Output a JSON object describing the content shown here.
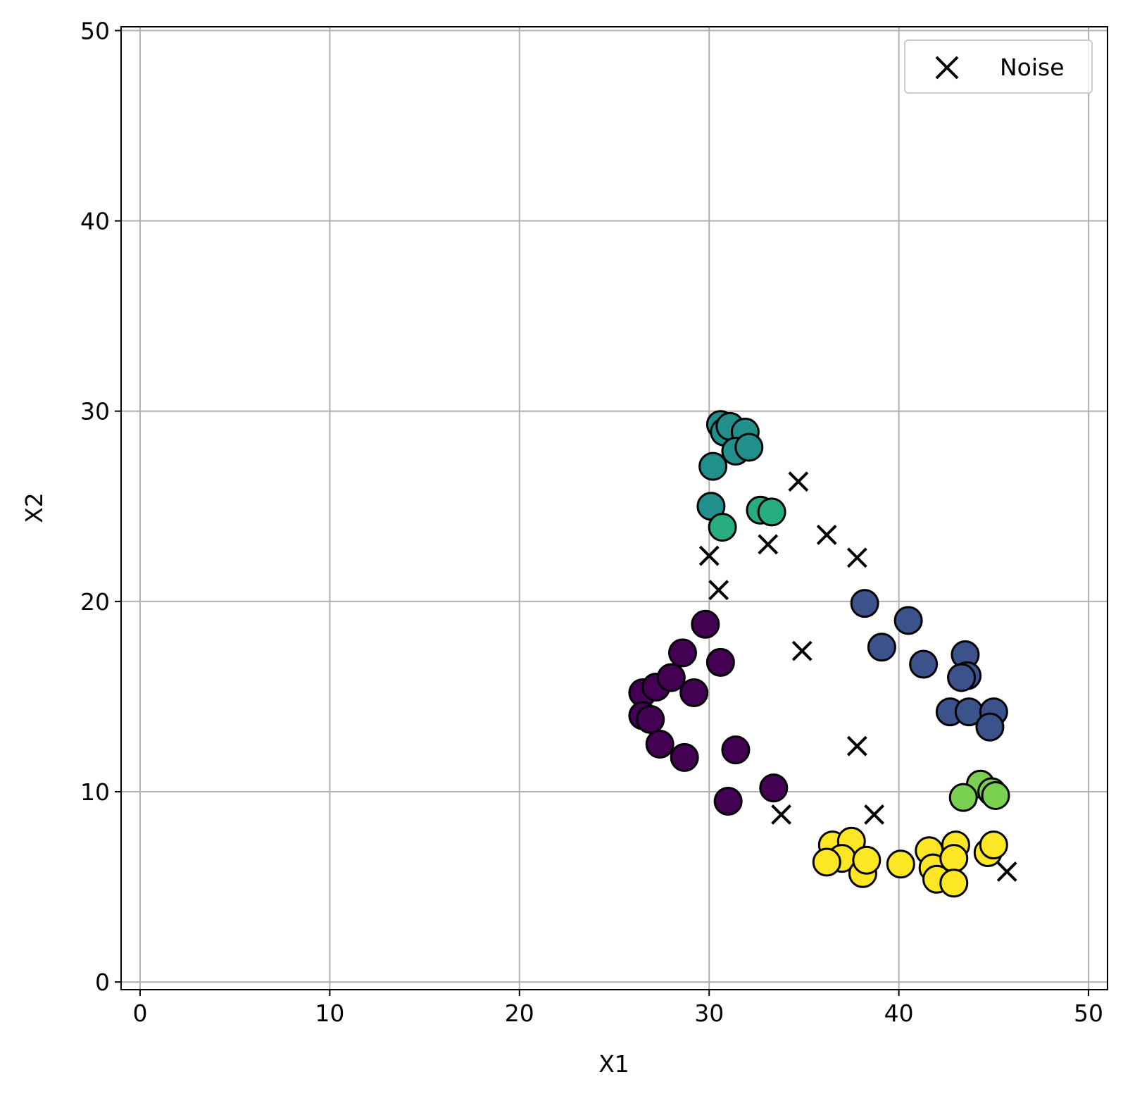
{
  "chart_data": {
    "type": "scatter",
    "title": "",
    "xlabel": "X1",
    "ylabel": "X2",
    "xlim": [
      -1,
      51
    ],
    "ylim": [
      -0.4,
      50.2
    ],
    "xticks": [
      0,
      10,
      20,
      30,
      40,
      50
    ],
    "yticks": [
      0,
      10,
      20,
      30,
      40,
      50
    ],
    "grid": true,
    "legend": {
      "position": "top-right",
      "entries": [
        {
          "label": "Noise",
          "marker": "x"
        }
      ]
    },
    "series": [
      {
        "color": "#440154",
        "marker": "circle",
        "points": [
          [
            26.5,
            15.2
          ],
          [
            26.5,
            14.0
          ],
          [
            26.9,
            13.8
          ],
          [
            27.2,
            15.5
          ],
          [
            28.0,
            16.0
          ],
          [
            28.6,
            17.3
          ],
          [
            27.4,
            12.5
          ],
          [
            29.2,
            15.2
          ],
          [
            29.8,
            18.8
          ],
          [
            30.6,
            16.8
          ],
          [
            28.7,
            11.8
          ],
          [
            31.4,
            12.2
          ],
          [
            31.0,
            9.5
          ],
          [
            33.4,
            10.2
          ]
        ]
      },
      {
        "color": "#3b528b",
        "marker": "circle",
        "points": [
          [
            38.2,
            19.9
          ],
          [
            40.5,
            19.0
          ],
          [
            39.1,
            17.6
          ],
          [
            41.3,
            16.7
          ],
          [
            43.5,
            17.2
          ],
          [
            43.6,
            16.1
          ],
          [
            43.3,
            16.0
          ],
          [
            42.7,
            14.2
          ],
          [
            43.7,
            14.2
          ],
          [
            45.0,
            14.2
          ],
          [
            44.8,
            13.4
          ]
        ]
      },
      {
        "color": "#21908d",
        "marker": "circle",
        "points": [
          [
            30.6,
            29.3
          ],
          [
            30.8,
            28.9
          ],
          [
            31.1,
            29.2
          ],
          [
            31.9,
            28.9
          ],
          [
            31.4,
            27.9
          ],
          [
            32.1,
            28.1
          ],
          [
            30.2,
            27.1
          ],
          [
            30.1,
            25.0
          ]
        ]
      },
      {
        "color": "#27ad81",
        "marker": "circle",
        "points": [
          [
            32.7,
            24.8
          ],
          [
            33.3,
            24.7
          ],
          [
            30.7,
            23.9
          ]
        ]
      },
      {
        "color": "#7ad151",
        "marker": "circle",
        "points": [
          [
            44.3,
            10.4
          ],
          [
            43.4,
            9.7
          ],
          [
            44.9,
            10.0
          ],
          [
            45.1,
            9.8
          ]
        ]
      },
      {
        "color": "#fde725",
        "marker": "circle",
        "points": [
          [
            36.5,
            7.2
          ],
          [
            37.5,
            7.4
          ],
          [
            37.0,
            6.5
          ],
          [
            36.2,
            6.3
          ],
          [
            38.1,
            5.7
          ],
          [
            38.3,
            6.4
          ],
          [
            40.1,
            6.2
          ],
          [
            41.6,
            6.9
          ],
          [
            41.8,
            6.0
          ],
          [
            42.0,
            5.4
          ],
          [
            43.0,
            7.2
          ],
          [
            42.9,
            6.5
          ],
          [
            42.9,
            5.2
          ],
          [
            44.7,
            6.8
          ],
          [
            45.0,
            7.2
          ]
        ]
      },
      {
        "name": "Noise",
        "color": "#000000",
        "marker": "x",
        "points": [
          [
            34.7,
            26.3
          ],
          [
            36.2,
            23.5
          ],
          [
            33.1,
            23.0
          ],
          [
            37.8,
            22.3
          ],
          [
            30.0,
            22.4
          ],
          [
            30.5,
            20.6
          ],
          [
            34.9,
            17.4
          ],
          [
            37.8,
            12.4
          ],
          [
            33.8,
            8.8
          ],
          [
            38.7,
            8.8
          ],
          [
            45.7,
            5.8
          ]
        ]
      }
    ]
  }
}
